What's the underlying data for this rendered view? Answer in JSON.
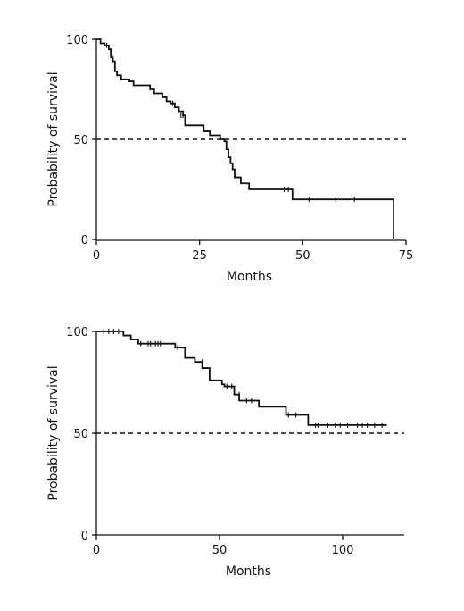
{
  "chart_data": [
    {
      "type": "line",
      "subtype": "kaplan-meier",
      "title": "",
      "xlabel": "Months",
      "ylabel": "Probability of survival",
      "xlim": [
        0,
        75
      ],
      "ylim": [
        0,
        100
      ],
      "xticks": [
        "0",
        "25",
        "50",
        "75"
      ],
      "yticks": [
        "0",
        "50",
        "100"
      ],
      "reference_line": {
        "y": 50,
        "style": "dashed"
      },
      "series": [
        {
          "steps": [
            [
              0,
              100
            ],
            [
              1,
              98
            ],
            [
              2,
              97
            ],
            [
              3,
              95
            ],
            [
              3.5,
              91
            ],
            [
              4,
              89
            ],
            [
              4.5,
              84
            ],
            [
              5,
              82
            ],
            [
              6,
              80
            ],
            [
              8,
              79
            ],
            [
              9,
              77
            ],
            [
              12,
              77
            ],
            [
              13,
              75
            ],
            [
              14,
              73
            ],
            [
              16,
              71
            ],
            [
              17,
              69
            ],
            [
              18,
              68
            ],
            [
              19,
              66
            ],
            [
              20,
              64
            ],
            [
              21,
              62
            ],
            [
              21.5,
              57
            ],
            [
              26,
              54
            ],
            [
              27.5,
              52
            ],
            [
              30,
              50
            ],
            [
              31,
              49
            ],
            [
              31.5,
              45
            ],
            [
              32,
              41
            ],
            [
              32.5,
              38
            ],
            [
              33,
              35
            ],
            [
              33.5,
              31
            ],
            [
              35,
              28
            ],
            [
              37,
              25
            ],
            [
              44,
              25
            ],
            [
              47.5,
              20
            ],
            [
              49,
              20
            ],
            [
              72,
              0
            ]
          ],
          "censored": [
            [
              2.5,
              97
            ],
            [
              3.8,
              91
            ],
            [
              18.5,
              68
            ],
            [
              20.5,
              62
            ],
            [
              21,
              62
            ],
            [
              45.5,
              25
            ],
            [
              46.5,
              25
            ],
            [
              51.5,
              20
            ],
            [
              58,
              20
            ],
            [
              62.5,
              20
            ]
          ]
        }
      ]
    },
    {
      "type": "line",
      "subtype": "kaplan-meier",
      "title": "",
      "xlabel": "Months",
      "ylabel": "Probability of survival",
      "xlim": [
        0,
        125
      ],
      "ylim": [
        0,
        100
      ],
      "xticks": [
        "0",
        "50",
        "100"
      ],
      "yticks": [
        "0",
        "50",
        "100"
      ],
      "reference_line": {
        "y": 50,
        "style": "dashed"
      },
      "series": [
        {
          "steps": [
            [
              0,
              100
            ],
            [
              11,
              98
            ],
            [
              14,
              96
            ],
            [
              17,
              94
            ],
            [
              28,
              94
            ],
            [
              32,
              92
            ],
            [
              36,
              87
            ],
            [
              40,
              85
            ],
            [
              43,
              82
            ],
            [
              46,
              76
            ],
            [
              51,
              74
            ],
            [
              52,
              73
            ],
            [
              56,
              69
            ],
            [
              58,
              66
            ],
            [
              66,
              63
            ],
            [
              77,
              59
            ],
            [
              86,
              54
            ],
            [
              118,
              54
            ]
          ],
          "censored": [
            [
              3,
              100
            ],
            [
              5,
              100
            ],
            [
              7,
              100
            ],
            [
              9,
              100
            ],
            [
              18,
              94
            ],
            [
              21,
              94
            ],
            [
              22,
              94
            ],
            [
              23,
              94
            ],
            [
              24,
              94
            ],
            [
              25,
              94
            ],
            [
              26,
              94
            ],
            [
              33,
              92
            ],
            [
              43,
              85
            ],
            [
              53,
              73
            ],
            [
              55,
              73
            ],
            [
              58,
              69
            ],
            [
              61,
              66
            ],
            [
              63,
              66
            ],
            [
              78,
              59
            ],
            [
              81,
              59
            ],
            [
              89,
              54
            ],
            [
              90,
              54
            ],
            [
              94,
              54
            ],
            [
              97,
              54
            ],
            [
              99,
              54
            ],
            [
              102,
              54
            ],
            [
              106,
              54
            ],
            [
              108,
              54
            ],
            [
              110,
              54
            ],
            [
              113,
              54
            ],
            [
              116,
              54
            ]
          ]
        }
      ]
    }
  ]
}
